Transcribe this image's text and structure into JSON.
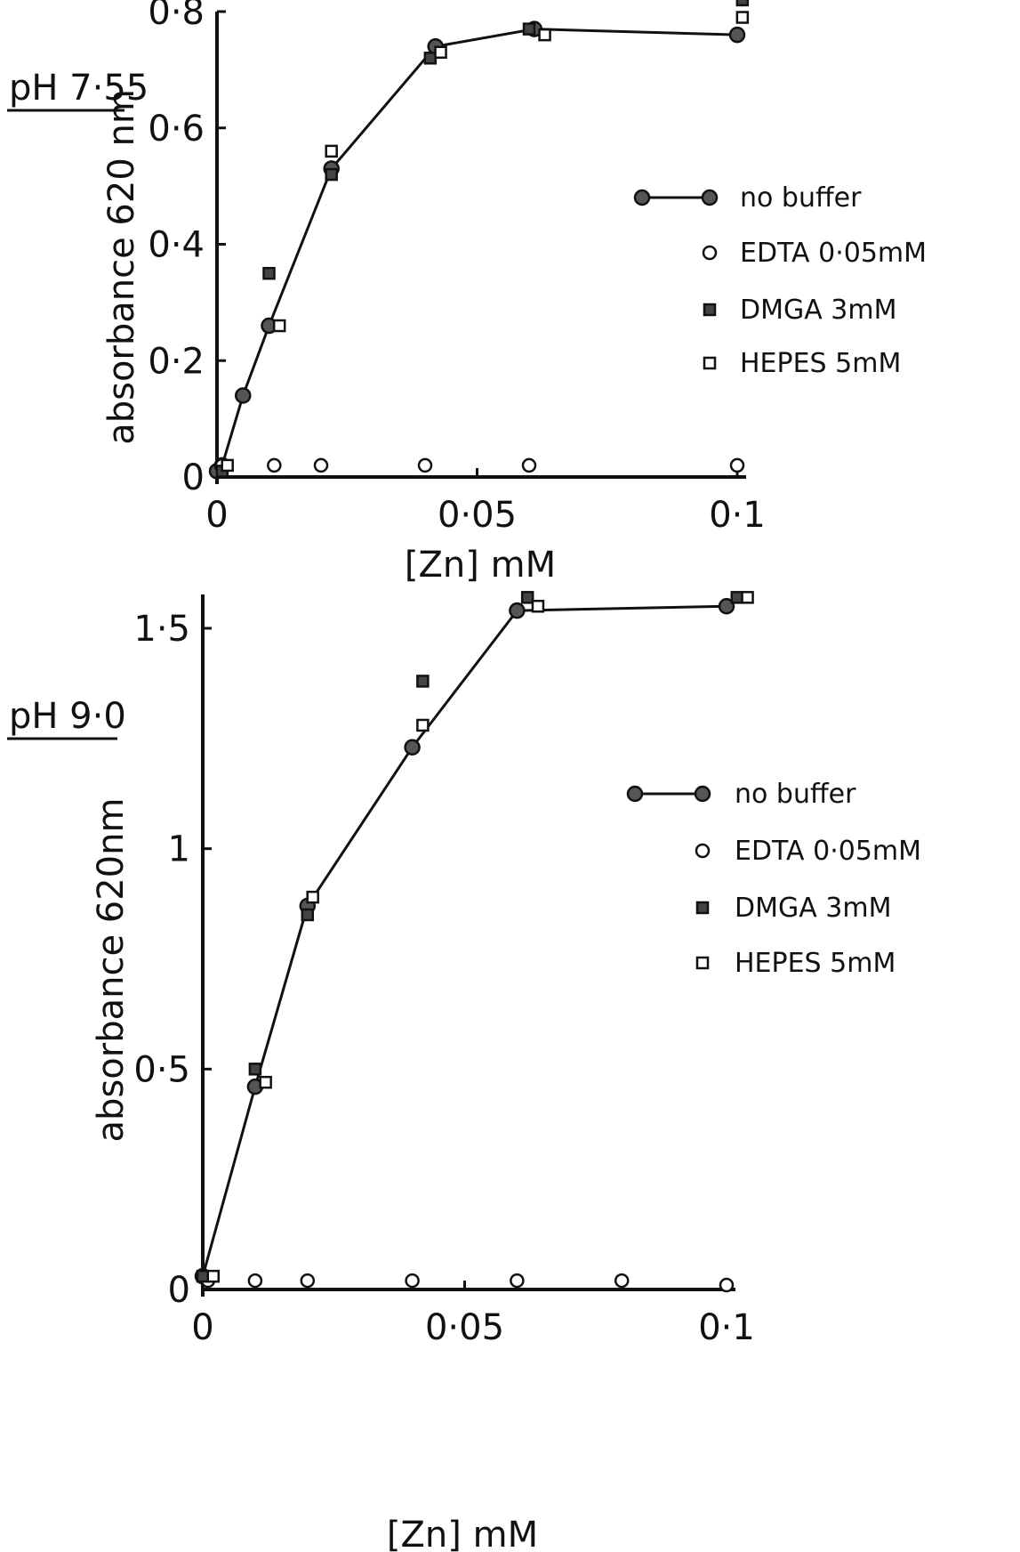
{
  "chart_data": [
    {
      "type": "scatter",
      "panel_label": "pH 7·55",
      "xlabel": "[Zn]  mM",
      "ylabel": "absorbance  620 nm",
      "xlim": [
        0,
        0.1
      ],
      "ylim": [
        0,
        0.8
      ],
      "x_ticks": [
        0,
        0.05,
        0.1
      ],
      "x_tick_labels": [
        "0",
        "0·05",
        "0·1"
      ],
      "y_ticks": [
        0,
        0.2,
        0.4,
        0.6,
        0.8
      ],
      "y_tick_labels": [
        "0",
        "0·2",
        "0·4",
        "0·6",
        "0·8"
      ],
      "legend_position": "right",
      "series": [
        {
          "name": "no buffer",
          "marker": "filled-circle",
          "connected": true,
          "x": [
            0,
            0.001,
            0.005,
            0.01,
            0.022,
            0.042,
            0.061,
            0.1
          ],
          "y": [
            0.01,
            0.02,
            0.14,
            0.26,
            0.53,
            0.74,
            0.77,
            0.76
          ]
        },
        {
          "name": "EDTA  0·05mM",
          "marker": "open-circle",
          "connected": false,
          "x": [
            0.001,
            0.011,
            0.02,
            0.04,
            0.06,
            0.1
          ],
          "y": [
            0.02,
            0.02,
            0.02,
            0.02,
            0.02,
            0.02
          ]
        },
        {
          "name": "DMGA  3mM",
          "marker": "filled-square",
          "connected": false,
          "x": [
            0.001,
            0.01,
            0.022,
            0.041,
            0.06,
            0.101
          ],
          "y": [
            0.01,
            0.35,
            0.52,
            0.72,
            0.77,
            0.82
          ]
        },
        {
          "name": "HEPES  5mM",
          "marker": "open-square",
          "connected": false,
          "x": [
            0.002,
            0.012,
            0.022,
            0.043,
            0.063,
            0.101
          ],
          "y": [
            0.02,
            0.26,
            0.56,
            0.73,
            0.76,
            0.79
          ]
        }
      ]
    },
    {
      "type": "scatter",
      "panel_label": "pH 9·0",
      "xlabel": "[Zn] mM",
      "ylabel": "absorbance  620nm",
      "xlim": [
        0,
        0.1
      ],
      "ylim": [
        0,
        1.5
      ],
      "x_ticks": [
        0,
        0.05,
        0.1
      ],
      "x_tick_labels": [
        "0",
        "0·05",
        "0·1"
      ],
      "y_ticks": [
        0,
        0.5,
        1,
        1.5
      ],
      "y_tick_labels": [
        "0",
        "0·5",
        "1",
        "1·5"
      ],
      "legend_position": "right",
      "series": [
        {
          "name": "no buffer",
          "marker": "filled-circle",
          "connected": true,
          "x": [
            0,
            0.01,
            0.02,
            0.04,
            0.06,
            0.1
          ],
          "y": [
            0.03,
            0.46,
            0.87,
            1.23,
            1.54,
            1.55
          ]
        },
        {
          "name": "EDTA  0·05mM",
          "marker": "open-circle",
          "connected": false,
          "x": [
            0.001,
            0.01,
            0.02,
            0.04,
            0.06,
            0.08,
            0.1
          ],
          "y": [
            0.02,
            0.02,
            0.02,
            0.02,
            0.02,
            0.02,
            0.01
          ]
        },
        {
          "name": "DMGA  3mM",
          "marker": "filled-square",
          "connected": false,
          "x": [
            0,
            0.01,
            0.02,
            0.042,
            0.062,
            0.102
          ],
          "y": [
            0.03,
            0.5,
            0.85,
            1.38,
            1.57,
            1.57
          ]
        },
        {
          "name": "HEPES  5mM",
          "marker": "open-square",
          "connected": false,
          "x": [
            0.002,
            0.012,
            0.021,
            0.042,
            0.064,
            0.104
          ],
          "y": [
            0.03,
            0.47,
            0.89,
            1.28,
            1.55,
            1.57
          ]
        }
      ]
    }
  ]
}
